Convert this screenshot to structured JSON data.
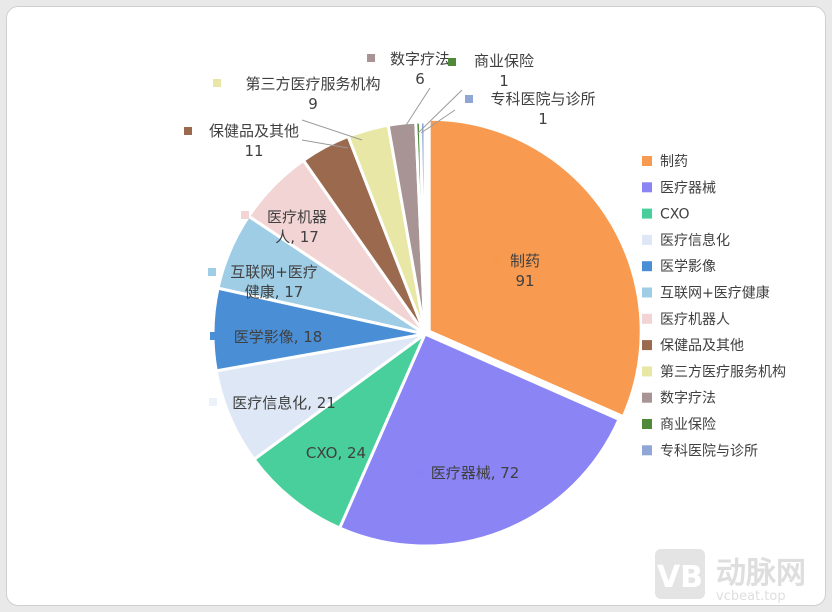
{
  "chart_data": {
    "type": "pie",
    "slices": [
      {
        "name": "制药",
        "value": 91,
        "color": "#f89a4f",
        "label": [
          "制药",
          "91"
        ]
      },
      {
        "name": "医疗器械",
        "value": 72,
        "color": "#8a84f5",
        "label": [
          "医疗器械, 72"
        ]
      },
      {
        "name": "CXO",
        "value": 24,
        "color": "#48cf9b",
        "label": [
          "CXO, 24"
        ]
      },
      {
        "name": "医疗信息化",
        "value": 21,
        "color": "#dde7f5",
        "label": [
          "医疗信息化, 21"
        ]
      },
      {
        "name": "医学影像",
        "value": 18,
        "color": "#4a8fd6",
        "label": [
          "医学影像, 18"
        ]
      },
      {
        "name": "互联网+医疗健康",
        "value": 17,
        "color": "#9fcde6",
        "label": [
          "互联网+医疗",
          "健康, 17"
        ]
      },
      {
        "name": "医疗机器人",
        "value": 17,
        "color": "#f2d4d4",
        "label": [
          "医疗机器",
          "人, 17"
        ]
      },
      {
        "name": "保健品及其他",
        "value": 11,
        "color": "#9b6a4e",
        "label": [
          "保健品及其他",
          "11"
        ]
      },
      {
        "name": "第三方医疗服务机构",
        "value": 9,
        "color": "#e8e7a6",
        "label": [
          "第三方医疗服务机构",
          "9"
        ]
      },
      {
        "name": "数字疗法",
        "value": 6,
        "color": "#a89494",
        "label": [
          "数字疗法",
          "6"
        ]
      },
      {
        "name": "商业保险",
        "value": 1,
        "color": "#4e8a3a",
        "label": [
          "商业保险",
          "1"
        ]
      },
      {
        "name": "专科医院与诊所",
        "value": 1,
        "color": "#8fa6d6",
        "label": [
          "专科医院与诊所",
          "1"
        ]
      }
    ],
    "legend": [
      "制药",
      "医疗器械",
      "CXO",
      "医疗信息化",
      "医学影像",
      "互联网+医疗健康",
      "医疗机器人",
      "保健品及其他",
      "第三方医疗服务机构",
      "数字疗法",
      "商业保险",
      "专科医院与诊所"
    ],
    "legend_position": "right"
  },
  "watermark": {
    "brand": "动脉网",
    "url": "vcbeat.top"
  }
}
